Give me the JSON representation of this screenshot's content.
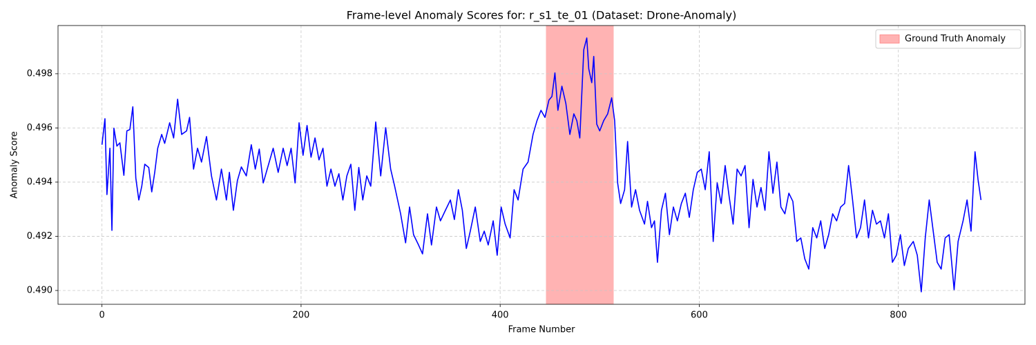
{
  "chart_data": {
    "type": "line",
    "title": "Frame-level Anomaly Scores for: r_s1_te_01 (Dataset: Drone-Anomaly)",
    "x_label": "Frame Number",
    "y_label": "Anomaly Score",
    "color": "blue",
    "x": [
      0,
      3,
      5,
      8,
      10,
      12,
      15,
      18,
      22,
      25,
      28,
      31,
      34,
      37,
      40,
      43,
      47,
      50,
      53,
      56,
      60,
      63,
      68,
      72,
      76,
      80,
      85,
      88,
      92,
      96,
      100,
      105,
      110,
      115,
      120,
      125,
      128,
      132,
      136,
      140,
      145,
      150,
      154,
      158,
      162,
      167,
      172,
      177,
      182,
      186,
      190,
      194,
      198,
      202,
      206,
      210,
      214,
      218,
      222,
      226,
      230,
      234,
      238,
      242,
      246,
      250,
      254,
      258,
      262,
      266,
      270,
      275,
      280,
      285,
      290,
      294,
      300,
      305,
      309,
      313,
      318,
      322,
      327,
      331,
      336,
      340,
      345,
      350,
      354,
      358,
      362,
      366,
      370,
      375,
      380,
      384,
      388,
      393,
      397,
      401,
      405,
      410,
      414,
      418,
      423,
      428,
      433,
      437,
      441,
      445,
      449,
      452,
      455,
      458,
      462,
      466,
      470,
      474,
      477,
      480,
      484,
      487,
      489,
      492,
      494,
      497,
      500,
      504,
      508,
      512,
      515,
      518,
      521,
      525,
      528,
      532,
      536,
      540,
      545,
      548,
      552,
      555,
      558,
      562,
      566,
      570,
      574,
      578,
      582,
      586,
      590,
      594,
      598,
      602,
      606,
      610,
      614,
      618,
      622,
      626,
      630,
      634,
      638,
      642,
      646,
      650,
      654,
      658,
      662,
      666,
      670,
      674,
      678,
      682,
      686,
      690,
      694,
      698,
      702,
      706,
      710,
      714,
      718,
      722,
      726,
      730,
      734,
      738,
      742,
      746,
      750,
      754,
      758,
      762,
      766,
      770,
      774,
      778,
      782,
      786,
      790,
      794,
      798,
      802,
      806,
      810,
      815,
      819,
      823,
      827,
      831,
      835,
      839,
      843,
      847,
      851,
      856,
      860,
      865,
      869,
      873,
      877,
      880,
      883
    ],
    "values": [
      0.49538,
      0.49634,
      0.49354,
      0.49525,
      0.49222,
      0.49599,
      0.49533,
      0.49545,
      0.49425,
      0.49589,
      0.49594,
      0.49678,
      0.49415,
      0.49334,
      0.49385,
      0.49466,
      0.49454,
      0.49364,
      0.49436,
      0.49525,
      0.49576,
      0.49543,
      0.49619,
      0.49563,
      0.49706,
      0.49576,
      0.49589,
      0.49639,
      0.49448,
      0.49525,
      0.49474,
      0.49568,
      0.49423,
      0.49334,
      0.49448,
      0.49334,
      0.49436,
      0.49296,
      0.49405,
      0.49456,
      0.49423,
      0.49538,
      0.49448,
      0.49522,
      0.49397,
      0.49461,
      0.49525,
      0.49436,
      0.49525,
      0.49461,
      0.49525,
      0.49397,
      0.49619,
      0.49499,
      0.49609,
      0.49492,
      0.49563,
      0.49482,
      0.49525,
      0.49385,
      0.49448,
      0.49385,
      0.49431,
      0.49334,
      0.49423,
      0.49466,
      0.49296,
      0.49454,
      0.49334,
      0.49423,
      0.49385,
      0.49622,
      0.49423,
      0.49601,
      0.49448,
      0.49385,
      0.49283,
      0.49176,
      0.49308,
      0.49206,
      0.49168,
      0.49135,
      0.49283,
      0.49168,
      0.49308,
      0.49257,
      0.49296,
      0.49334,
      0.49262,
      0.49372,
      0.49296,
      0.49155,
      0.49219,
      0.49308,
      0.49181,
      0.49219,
      0.49168,
      0.49257,
      0.4913,
      0.49308,
      0.49245,
      0.49194,
      0.49372,
      0.49334,
      0.49448,
      0.49474,
      0.49576,
      0.49627,
      0.49665,
      0.49639,
      0.49703,
      0.49716,
      0.49803,
      0.49665,
      0.49754,
      0.4969,
      0.49576,
      0.49652,
      0.49627,
      0.49563,
      0.49889,
      0.49932,
      0.49818,
      0.49767,
      0.49864,
      0.49614,
      0.49589,
      0.49627,
      0.49652,
      0.49711,
      0.49627,
      0.49397,
      0.49321,
      0.49372,
      0.4955,
      0.49308,
      0.49372,
      0.49296,
      0.49245,
      0.49329,
      0.49232,
      0.49257,
      0.49104,
      0.49296,
      0.49359,
      0.49206,
      0.49308,
      0.49257,
      0.49321,
      0.49359,
      0.4927,
      0.49372,
      0.49436,
      0.49448,
      0.49372,
      0.49512,
      0.49181,
      0.49397,
      0.49321,
      0.49461,
      0.49347,
      0.49245,
      0.49448,
      0.49423,
      0.49461,
      0.49232,
      0.4941,
      0.49308,
      0.4938,
      0.49296,
      0.49512,
      0.49359,
      0.49474,
      0.49308,
      0.49283,
      0.49359,
      0.49329,
      0.49181,
      0.49194,
      0.49117,
      0.49079,
      0.49232,
      0.49194,
      0.49257,
      0.49155,
      0.49206,
      0.49283,
      0.49257,
      0.49308,
      0.49321,
      0.49461,
      0.49334,
      0.49194,
      0.49232,
      0.49334,
      0.49194,
      0.49296,
      0.49245,
      0.49257,
      0.49194,
      0.49283,
      0.49104,
      0.4913,
      0.49206,
      0.49092,
      0.49155,
      0.49181,
      0.4913,
      0.48995,
      0.49194,
      0.49334,
      0.49219,
      0.49104,
      0.49079,
      0.49194,
      0.49206,
      0.49003,
      0.49181,
      0.49257,
      0.49334,
      0.49219,
      0.49512,
      0.4941,
      0.49334
    ],
    "spans": [
      {
        "name": "Ground Truth Anomaly",
        "x": [
          446,
          514
        ],
        "color": "#ffb3b3"
      }
    ],
    "xlim": [
      -44.15,
      927.15
    ],
    "ylim": [
      0.48949,
      0.49978
    ],
    "xticks": [
      0,
      200,
      400,
      600,
      800
    ],
    "yticks": [
      {
        "value": 0.49,
        "label": "0.490"
      },
      0.492,
      0.494,
      0.496,
      0.498
    ],
    "grid": true,
    "legend": "upper right"
  }
}
